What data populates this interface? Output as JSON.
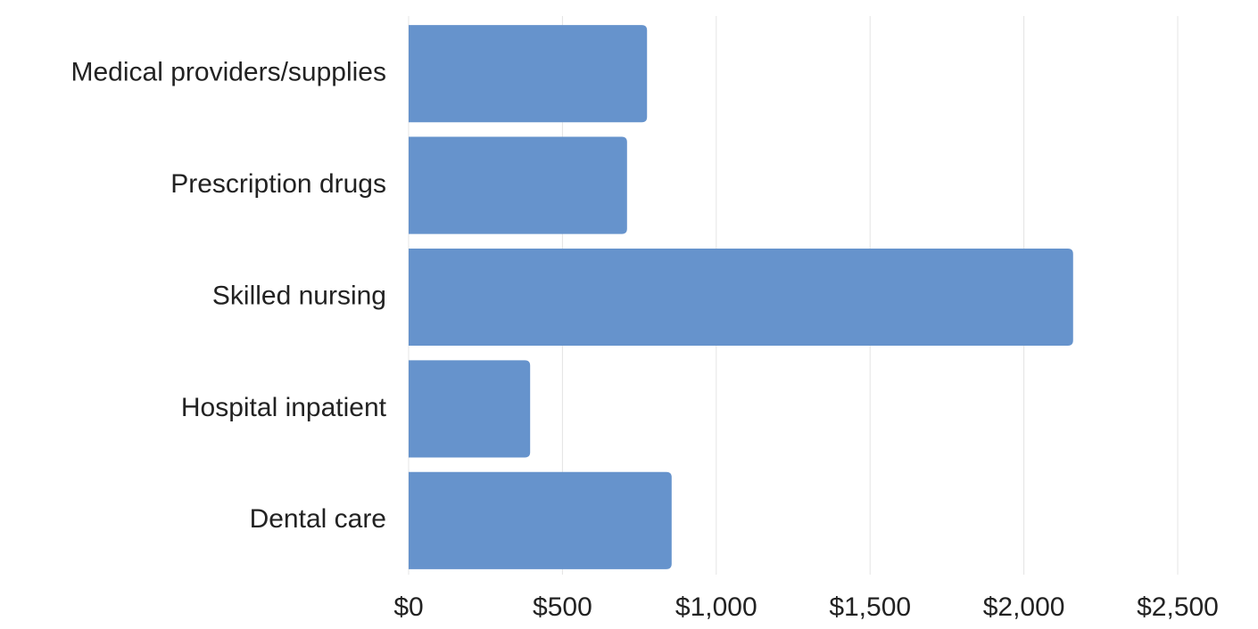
{
  "chart_data": {
    "type": "bar",
    "orientation": "horizontal",
    "categories": [
      "Medical providers/supplies",
      "Prescription drugs",
      "Skilled nursing",
      "Hospital inpatient",
      "Dental care"
    ],
    "values": [
      775,
      710,
      2160,
      395,
      855
    ],
    "color": "#6693cc",
    "xlim": [
      0,
      2500
    ],
    "xticks": [
      {
        "value": 0,
        "label": "$0"
      },
      {
        "value": 500,
        "label": "$500"
      },
      {
        "value": 1000,
        "label": "$1,000"
      },
      {
        "value": 1500,
        "label": "$1,500"
      },
      {
        "value": 2000,
        "label": "$2,000"
      },
      {
        "value": 2500,
        "label": "$2,500"
      }
    ],
    "grid": true
  }
}
